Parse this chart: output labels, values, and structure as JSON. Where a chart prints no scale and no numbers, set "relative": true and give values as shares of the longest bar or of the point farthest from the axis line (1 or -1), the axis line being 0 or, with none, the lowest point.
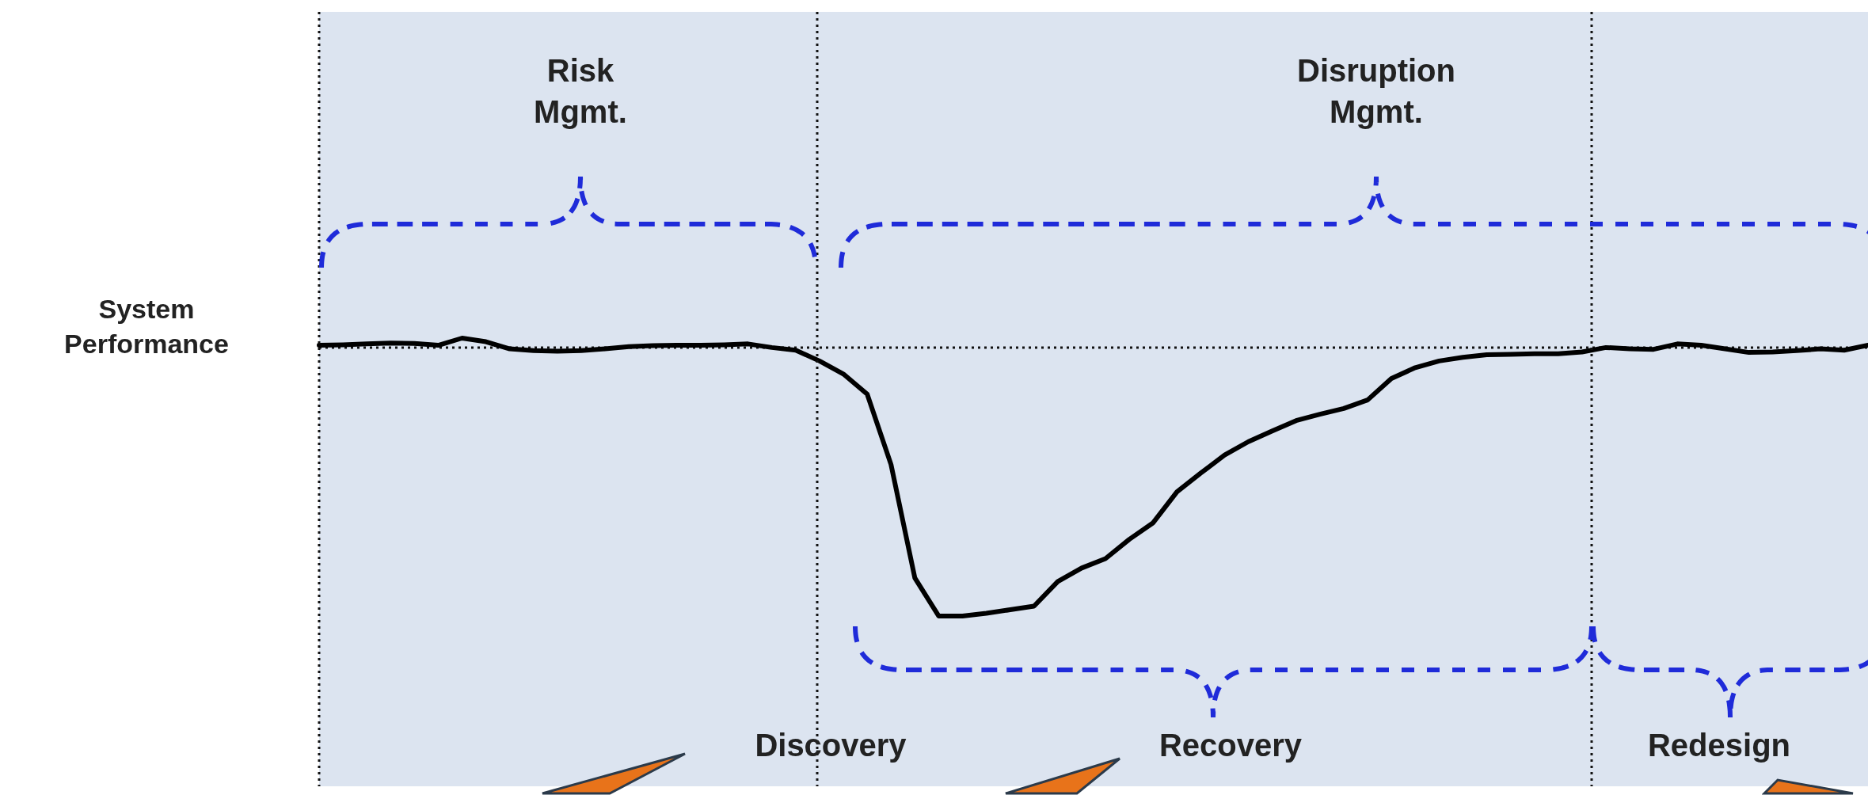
{
  "chart_data": {
    "type": "line",
    "relative": true,
    "ylabel": "System Performance",
    "annotations": [
      "Risk Mgmt.",
      "Disruption Mgmt.",
      "Discovery",
      "Recovery",
      "Redesign"
    ],
    "categories": [
      null,
      null,
      null,
      null,
      null,
      null,
      null,
      null,
      null,
      null,
      null,
      null,
      null,
      null,
      null,
      null,
      null,
      null,
      null,
      null,
      null,
      null,
      null,
      null,
      null,
      null,
      null,
      null,
      null,
      null,
      null,
      null,
      null,
      null,
      null,
      null,
      null,
      null,
      null,
      null,
      null,
      null,
      null,
      null,
      null,
      null,
      null,
      null,
      null,
      null,
      null,
      null,
      null,
      null,
      null,
      null,
      null,
      null,
      null,
      null,
      null,
      null,
      null,
      null,
      null,
      null
    ],
    "series": [
      {
        "color": "#000000",
        "values": [
          0.984,
          0.985,
          0.987,
          0.989,
          0.988,
          0.984,
          1.0,
          0.992,
          0.976,
          0.972,
          0.971,
          0.972,
          0.976,
          0.981,
          0.983,
          0.984,
          0.984,
          0.985,
          0.987,
          0.979,
          0.973,
          0.949,
          0.92,
          0.875,
          0.718,
          0.465,
          0.38,
          0.38,
          0.386,
          0.394,
          0.402,
          0.457,
          0.487,
          0.508,
          0.551,
          0.588,
          0.657,
          0.699,
          0.739,
          0.769,
          0.793,
          0.816,
          0.83,
          0.843,
          0.862,
          0.91,
          0.934,
          0.949,
          0.957,
          0.963,
          0.964,
          0.965,
          0.965,
          0.969,
          0.979,
          0.976,
          0.975,
          0.987,
          0.984,
          0.976,
          0.968,
          0.969,
          0.972,
          0.976,
          0.973,
          0.984
        ]
      }
    ],
    "ref_lines": [
      {
        "axis": "y",
        "value": 0.979
      }
    ],
    "grid": false,
    "legend": false,
    "marker": "none",
    "line_style": "solid"
  }
}
